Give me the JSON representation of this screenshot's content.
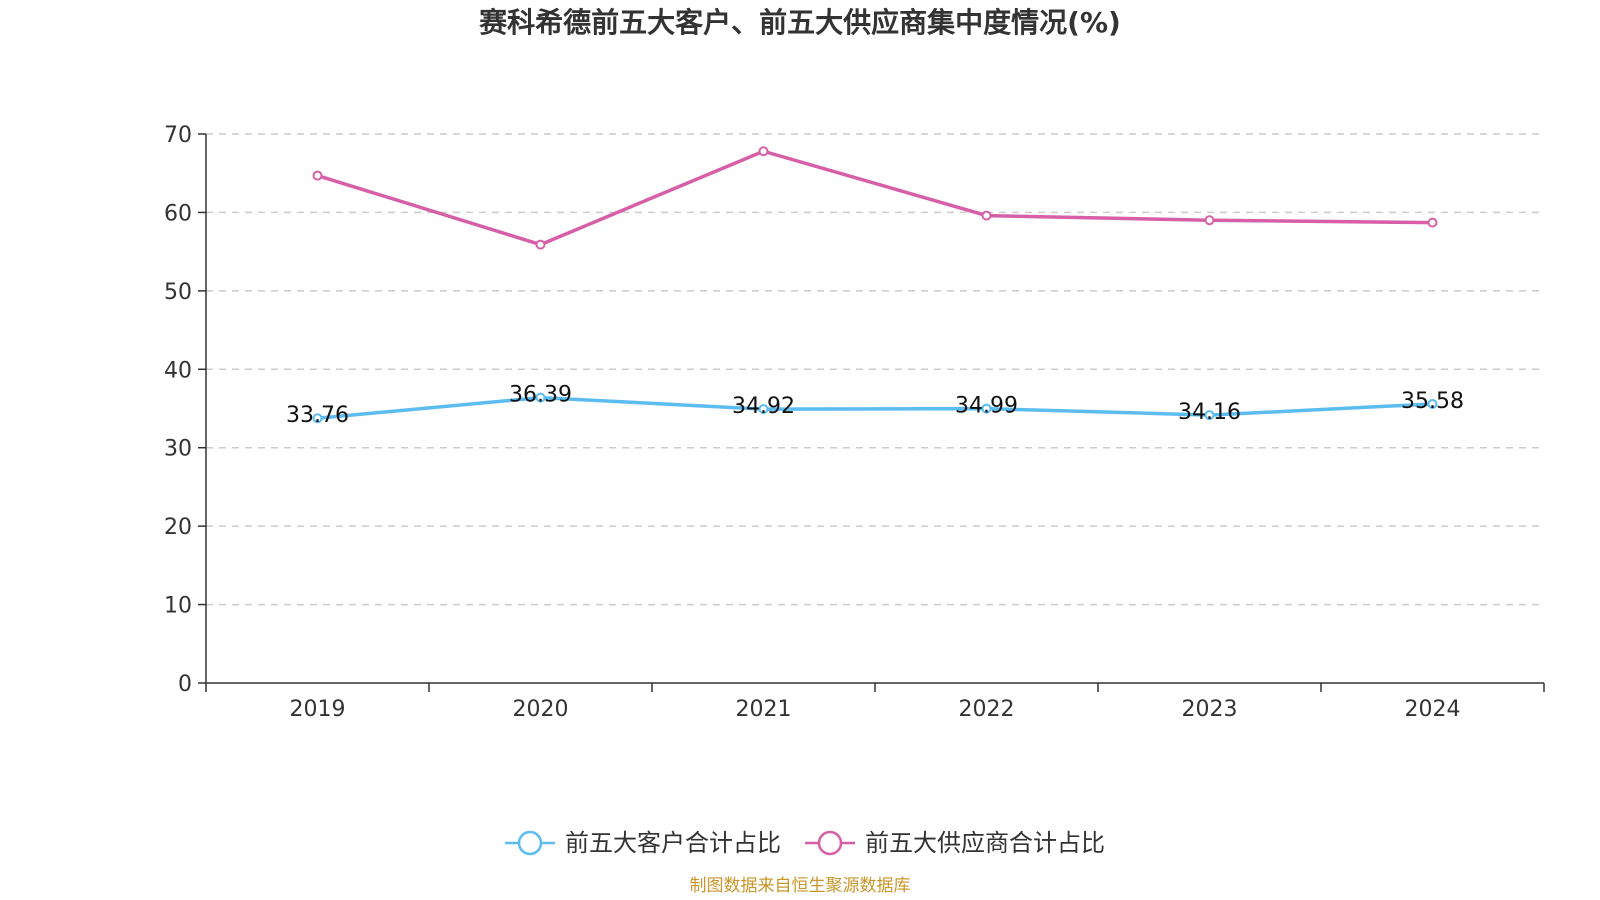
{
  "chart_data": {
    "type": "line",
    "title": "赛科希德前五大客户、前五大供应商集中度情况(%)",
    "categories": [
      "2019",
      "2020",
      "2021",
      "2022",
      "2023",
      "2024"
    ],
    "y_ticks": [
      "0",
      "10",
      "20",
      "30",
      "40",
      "50",
      "60",
      "70"
    ],
    "ylim": [
      0,
      70
    ],
    "grid": true,
    "legend_position": "bottom-center",
    "series": [
      {
        "name": "前五大客户合计占比",
        "color": "#5bbcf0",
        "values": [
          33.76,
          36.39,
          34.92,
          34.99,
          34.16,
          35.58
        ],
        "labels": [
          "33.76",
          "36.39",
          "34.92",
          "34.99",
          "34.16",
          "35.58"
        ]
      },
      {
        "name": "前五大供应商合计占比",
        "color": "#d65fa8",
        "values": [
          64.7,
          55.9,
          67.8,
          59.6,
          59.0,
          58.7
        ]
      }
    ]
  },
  "source": {
    "text": "制图数据来自恒生聚源数据库",
    "color": "#c8962a"
  }
}
